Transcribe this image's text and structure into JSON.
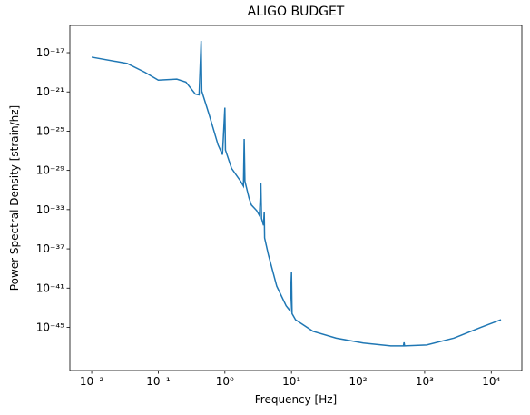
{
  "chart_data": {
    "type": "line",
    "title": "ALIGO BUDGET",
    "x_label": "Frequency [Hz]",
    "y_label": "Power Spectral Density [strain/hz]",
    "x_scale": "log",
    "y_scale": "log",
    "xlim": [
      0.0047,
      28800
    ],
    "ylim": [
      4e-50,
      6e-15
    ],
    "xticks": [
      {
        "value": 0.01,
        "label": "10⁻²"
      },
      {
        "value": 0.1,
        "label": "10⁻¹"
      },
      {
        "value": 1,
        "label": "10⁰"
      },
      {
        "value": 10,
        "label": "10¹"
      },
      {
        "value": 100,
        "label": "10²"
      },
      {
        "value": 1000,
        "label": "10³"
      },
      {
        "value": 10000,
        "label": "10⁴"
      }
    ],
    "yticks": [
      {
        "value": 1e-17,
        "label": "10⁻¹⁷"
      },
      {
        "value": 1e-21,
        "label": "10⁻²¹"
      },
      {
        "value": 1e-25,
        "label": "10⁻²⁵"
      },
      {
        "value": 1e-29,
        "label": "10⁻²⁹"
      },
      {
        "value": 1e-33,
        "label": "10⁻³³"
      },
      {
        "value": 1e-37,
        "label": "10⁻³⁷"
      },
      {
        "value": 1e-41,
        "label": "10⁻⁴¹"
      },
      {
        "value": 1e-45,
        "label": "10⁻⁴⁵"
      }
    ],
    "series": [
      {
        "color": "#1f77b4",
        "x": [
          0.01,
          0.034,
          0.063,
          0.1,
          0.19,
          0.26,
          0.36,
          0.41,
          0.44,
          0.45,
          0.575,
          0.79,
          0.92,
          1.0,
          1.02,
          1.26,
          1.72,
          1.9,
          1.95,
          2.0,
          2.3,
          2.5,
          3.0,
          3.3,
          3.47,
          3.55,
          3.8,
          3.9,
          3.95,
          4.5,
          6.0,
          8.3,
          9.5,
          10,
          10.2,
          11.5,
          21,
          47,
          120,
          310,
          480,
          490,
          500,
          1070,
          2750,
          7000,
          14000
        ],
        "values": [
          3.5e-18,
          8e-19,
          1e-19,
          1.6e-20,
          2e-20,
          1e-20,
          6e-22,
          5e-22,
          1.6e-16,
          1.2e-21,
          6e-24,
          4e-27,
          4e-28,
          2.5e-23,
          1.2e-27,
          1.6e-29,
          8e-31,
          2.5e-31,
          1.6e-26,
          8e-31,
          1.6e-32,
          3e-33,
          8e-34,
          2.5e-34,
          5e-31,
          1.3e-34,
          2.5e-35,
          6e-34,
          1.3e-36,
          2.5e-38,
          1.6e-41,
          1.6e-43,
          5e-44,
          4e-40,
          2.5e-44,
          6e-45,
          4e-46,
          8e-47,
          2.5e-47,
          1.3e-47,
          1.3e-47,
          3e-47,
          1.3e-47,
          1.6e-47,
          8e-47,
          1e-45,
          6e-45
        ]
      }
    ]
  }
}
